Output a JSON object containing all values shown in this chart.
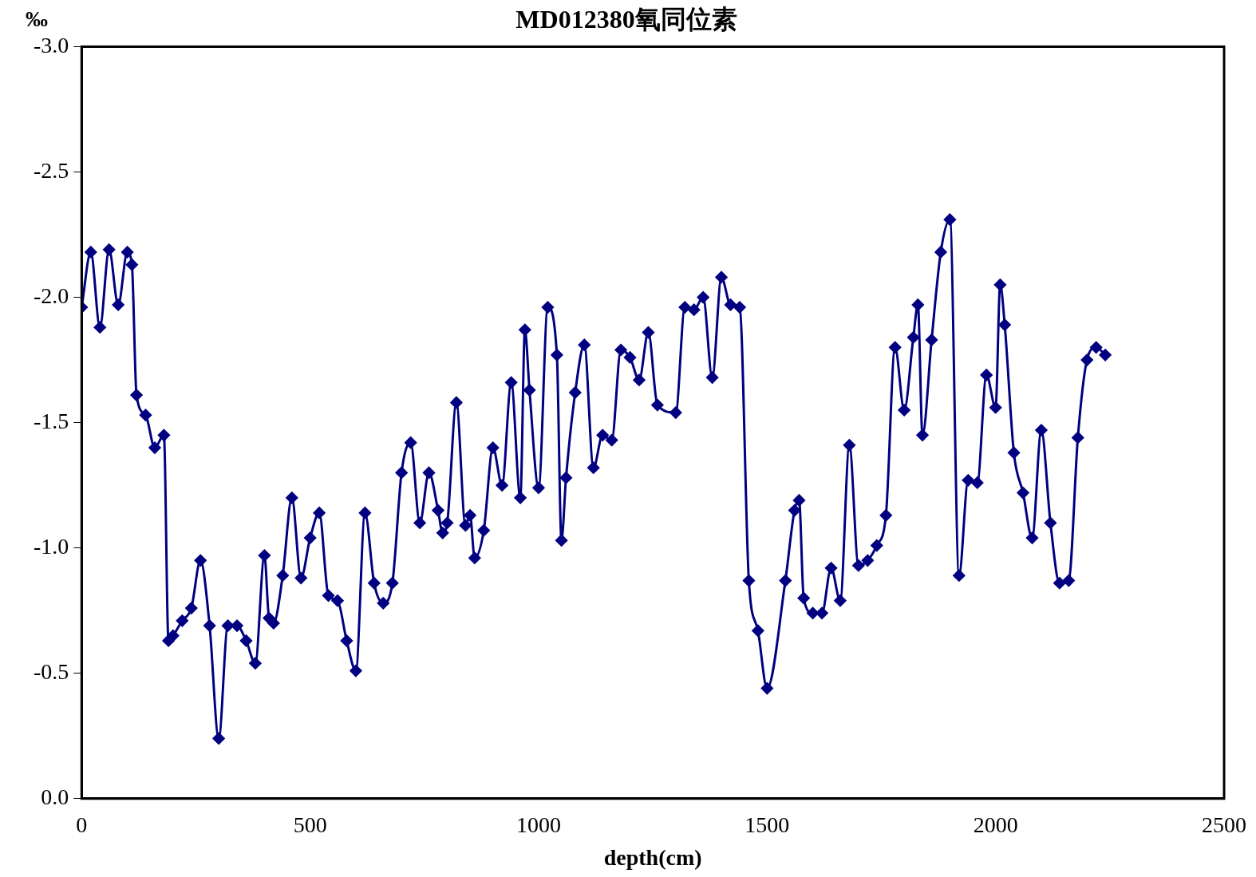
{
  "chart_data": {
    "type": "line",
    "title": "MD012380氧同位素",
    "xlabel": "depth(cm)",
    "ylabel": "‰",
    "x": [
      0,
      20,
      40,
      60,
      80,
      100,
      110,
      120,
      140,
      160,
      180,
      190,
      200,
      220,
      240,
      260,
      280,
      300,
      320,
      340,
      360,
      380,
      400,
      410,
      420,
      440,
      460,
      480,
      500,
      520,
      540,
      560,
      580,
      600,
      620,
      640,
      660,
      680,
      700,
      720,
      740,
      760,
      780,
      790,
      800,
      820,
      840,
      850,
      860,
      880,
      900,
      920,
      940,
      960,
      970,
      980,
      1000,
      1020,
      1040,
      1050,
      1060,
      1080,
      1100,
      1120,
      1140,
      1160,
      1180,
      1200,
      1220,
      1240,
      1260,
      1300,
      1320,
      1340,
      1360,
      1380,
      1400,
      1420,
      1440,
      1460,
      1480,
      1500,
      1540,
      1560,
      1570,
      1580,
      1600,
      1620,
      1640,
      1660,
      1680,
      1700,
      1720,
      1740,
      1760,
      1780,
      1800,
      1820,
      1830,
      1840,
      1860,
      1880,
      1900,
      1920,
      1940,
      1960,
      1980,
      2000,
      2010,
      2020,
      2040,
      2060,
      2080,
      2100,
      2120,
      2140,
      2160,
      2180,
      2200,
      2220,
      2240
    ],
    "series": [
      {
        "color": "#000080",
        "values": [
          -1.96,
          -2.18,
          -1.88,
          -2.19,
          -1.97,
          -2.18,
          -2.13,
          -1.61,
          -1.53,
          -1.4,
          -1.45,
          -0.63,
          -0.65,
          -0.71,
          -0.76,
          -0.95,
          -0.69,
          -0.24,
          -0.69,
          -0.69,
          -0.63,
          -0.54,
          -0.97,
          -0.72,
          -0.7,
          -0.89,
          -1.2,
          -0.88,
          -1.04,
          -1.14,
          -0.81,
          -0.79,
          -0.63,
          -0.51,
          -1.14,
          -0.86,
          -0.78,
          -0.86,
          -1.3,
          -1.42,
          -1.1,
          -1.3,
          -1.15,
          -1.06,
          -1.1,
          -1.58,
          -1.09,
          -1.13,
          -0.96,
          -1.07,
          -1.4,
          -1.25,
          -1.66,
          -1.2,
          -1.87,
          -1.63,
          -1.24,
          -1.96,
          -1.77,
          -1.03,
          -1.28,
          -1.62,
          -1.81,
          -1.32,
          -1.45,
          -1.43,
          -1.79,
          -1.76,
          -1.67,
          -1.86,
          -1.57,
          -1.54,
          -1.96,
          -1.95,
          -2.0,
          -1.68,
          -2.08,
          -1.97,
          -1.96,
          -0.87,
          -0.67,
          -0.44,
          -0.87,
          -1.15,
          -1.19,
          -0.8,
          -0.74,
          -0.74,
          -0.92,
          -0.79,
          -1.41,
          -0.93,
          -0.95,
          -1.01,
          -1.13,
          -1.8,
          -1.55,
          -1.84,
          -1.97,
          -1.45,
          -1.83,
          -2.18,
          -2.31,
          -0.89,
          -1.27,
          -1.26,
          -1.69,
          -1.56,
          -2.05,
          -1.89,
          -1.38,
          -1.22,
          -1.04,
          -1.47,
          -1.1,
          -0.86,
          -0.87,
          -1.44,
          -1.75,
          -1.8,
          -1.77
        ]
      }
    ],
    "xlim": [
      0,
      2500
    ],
    "xticks": [
      0,
      500,
      1000,
      1500,
      2000,
      2500
    ],
    "ylim": [
      0,
      -3
    ],
    "yticks": [
      {
        "value": 0,
        "label": "0.0"
      },
      {
        "value": -0.5,
        "label": "-0.5"
      },
      {
        "value": -1,
        "label": "-1.0"
      },
      {
        "value": -1.5,
        "label": "-1.5"
      },
      {
        "value": -2,
        "label": "-2.0"
      },
      {
        "value": -2.5,
        "label": "-2.5"
      },
      {
        "value": -3,
        "label": "-3.0"
      }
    ],
    "grid": false,
    "legend": false,
    "marker": "diamond",
    "line_style": "solid"
  }
}
